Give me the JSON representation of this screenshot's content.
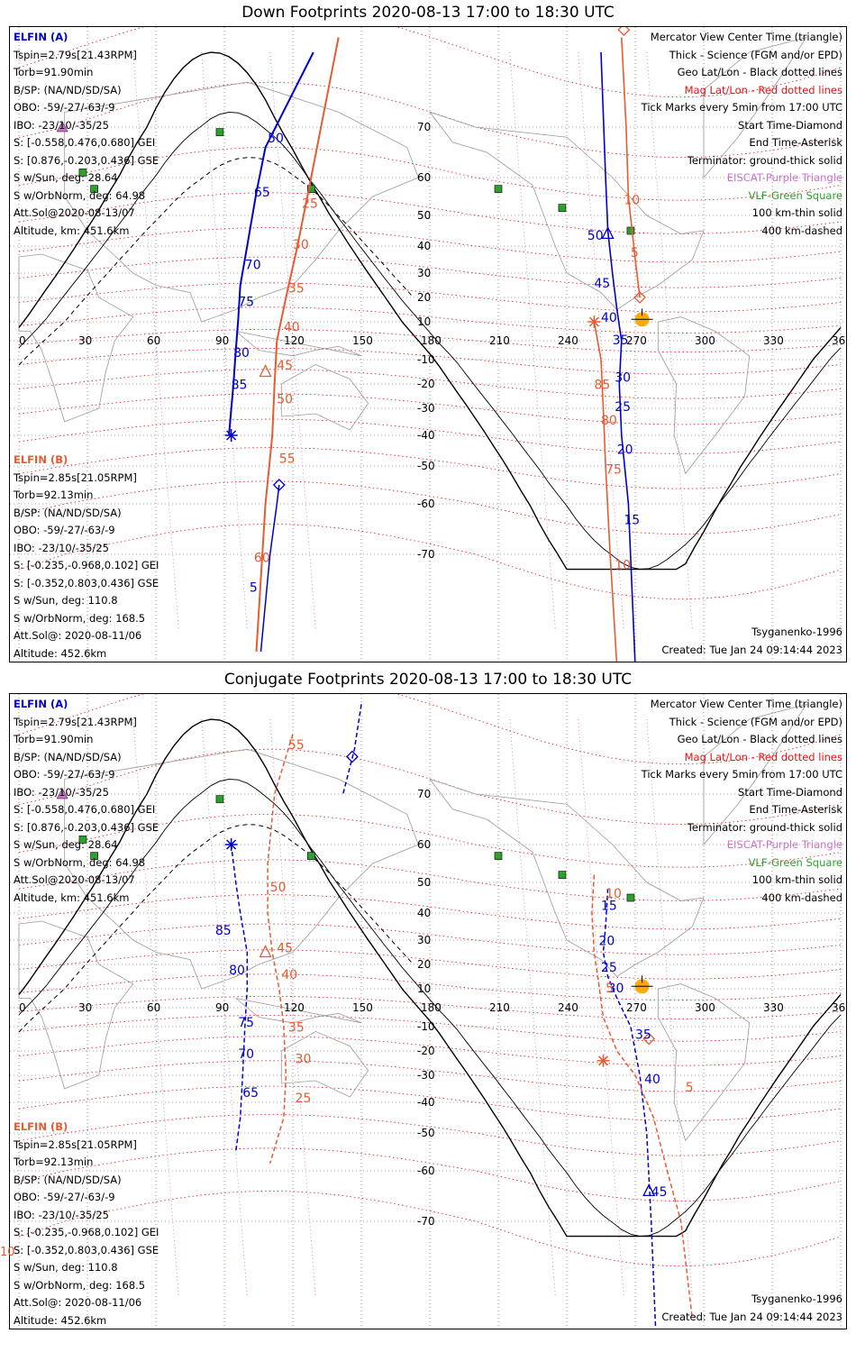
{
  "panels": [
    {
      "title": "Down Footprints 2020-08-13 17:00 to 18:30 UTC",
      "elfin_a": {
        "header": "ELFIN (A)",
        "lines": [
          "Tspin=2.79s[21.43RPM]",
          "Torb=91.90min",
          "B/SP: (NA/ND/SD/SA)",
          "OBO: -59/-27/-63/-9",
          "IBO: -23/10/-35/25",
          "S: [-0.558,0.476,0.680] GEI",
          "S: [0.876,-0.203,0.436] GSE",
          "S w/Sun, deg: 28.64",
          "S w/OrbNorm, deg: 64.98",
          "Att.Sol@2020-08-13/07",
          "Altitude, km: 451.6km"
        ]
      },
      "elfin_b": {
        "header": "ELFIN (B)",
        "lines": [
          "Tspin=2.85s[21.05RPM]",
          "Torb=92.13min",
          "B/SP: (NA/ND/SD/SA)",
          "OBO: -59/-27/-63/-9",
          "IBO: -23/10/-35/25",
          "S: [-0.235,-0.968,0.102] GEI",
          "S: [-0.352,0.803,0.436] GSE",
          "S w/Sun, deg: 110.8",
          "S w/OrbNorm, deg: 168.5",
          "Att.Sol@: 2020-08-11/06",
          "Altitude: 452.6km"
        ]
      },
      "track_labels": {
        "a": [
          {
            "t": "50",
            "lon": 109,
            "lat": 67
          },
          {
            "t": "65",
            "lon": 103,
            "lat": 55
          },
          {
            "t": "70",
            "lon": 99,
            "lat": 31.5
          },
          {
            "t": "75",
            "lon": 96,
            "lat": 16.5
          },
          {
            "t": "80",
            "lon": 94,
            "lat": -8.5
          },
          {
            "t": "85",
            "lon": 93,
            "lat": -22
          },
          {
            "t": "5",
            "lon": 101,
            "lat": -75
          },
          {
            "t": "50",
            "lon": 249,
            "lat": 42
          },
          {
            "t": "45",
            "lon": 252,
            "lat": 24
          },
          {
            "t": "40",
            "lon": 255,
            "lat": 10
          },
          {
            "t": "35",
            "lon": 260,
            "lat": -2
          },
          {
            "t": "30",
            "lon": 261,
            "lat": -19
          },
          {
            "t": "25",
            "lon": 261,
            "lat": -31
          },
          {
            "t": "20",
            "lon": 262,
            "lat": -46
          },
          {
            "t": "15",
            "lon": 265,
            "lat": -64
          }
        ],
        "b": [
          {
            "t": "25",
            "lon": 124,
            "lat": 52
          },
          {
            "t": "30",
            "lon": 120,
            "lat": 39
          },
          {
            "t": "35",
            "lon": 118,
            "lat": 22
          },
          {
            "t": "40",
            "lon": 116,
            "lat": 5
          },
          {
            "t": "45",
            "lon": 113,
            "lat": -14
          },
          {
            "t": "50",
            "lon": 113,
            "lat": -28
          },
          {
            "t": "55",
            "lon": 114,
            "lat": -49
          },
          {
            "t": "60",
            "lon": 103,
            "lat": -71
          },
          {
            "t": "10",
            "lon": 265,
            "lat": 53
          },
          {
            "t": "5",
            "lon": 268,
            "lat": 36
          },
          {
            "t": "85",
            "lon": 252,
            "lat": -22
          },
          {
            "t": "80",
            "lon": 255,
            "lat": -36
          },
          {
            "t": "75",
            "lon": 257,
            "lat": -52
          },
          {
            "t": "10",
            "lon": 261,
            "lat": -72
          }
        ]
      }
    },
    {
      "title": "Conjugate Footprints 2020-08-13 17:00 to 18:30 UTC",
      "elfin_a": {
        "header": "ELFIN (A)",
        "lines": [
          "Tspin=2.79s[21.43RPM]",
          "Torb=91.90min",
          "B/SP: (NA/ND/SD/SA)",
          "OBO: -59/-27/-63/-9",
          "IBO: -23/10/-35/25",
          "S: [-0.558,0.476,0.680] GEI",
          "S: [0.876,-0.203,0.436] GSE",
          "S w/Sun, deg: 28.64",
          "S w/OrbNorm, deg: 64.98",
          "Att.Sol@2020-08-13/07",
          "Altitude, km: 451.6km"
        ]
      },
      "elfin_b": {
        "header": "ELFIN (B)",
        "lines": [
          "Tspin=2.85s[21.05RPM]",
          "Torb=92.13min",
          "B/SP: (NA/ND/SD/SA)",
          "OBO: -59/-27/-63/-9",
          "IBO: -23/10/-35/25",
          "S: [-0.235,-0.968,0.102] GEI",
          "S: [-0.352,0.803,0.436] GSE",
          "S w/Sun, deg: 110.8",
          "S w/OrbNorm, deg: 168.5",
          "Att.Sol@: 2020-08-11/06",
          "Altitude: 452.6km"
        ]
      },
      "track_labels": {
        "a": [
          {
            "t": "85",
            "lon": 86,
            "lat": 32
          },
          {
            "t": "80",
            "lon": 92,
            "lat": 16
          },
          {
            "t": "75",
            "lon": 96,
            "lat": -10
          },
          {
            "t": "70",
            "lon": 96,
            "lat": -23
          },
          {
            "t": "65",
            "lon": 98,
            "lat": -38
          },
          {
            "t": "15",
            "lon": 255,
            "lat": 41
          },
          {
            "t": "20",
            "lon": 254,
            "lat": 28
          },
          {
            "t": "25",
            "lon": 255,
            "lat": 17
          },
          {
            "t": "30",
            "lon": 258,
            "lat": 8
          },
          {
            "t": "35",
            "lon": 270,
            "lat": -15
          },
          {
            "t": "40",
            "lon": 274,
            "lat": -33
          },
          {
            "t": "45",
            "lon": 277,
            "lat": -65
          }
        ],
        "b": [
          {
            "t": "55",
            "lon": 118,
            "lat": 76
          },
          {
            "t": "50",
            "lon": 110,
            "lat": 47
          },
          {
            "t": "45",
            "lon": 113,
            "lat": 25
          },
          {
            "t": "40",
            "lon": 115,
            "lat": 14
          },
          {
            "t": "35",
            "lon": 118,
            "lat": -12
          },
          {
            "t": "30",
            "lon": 121,
            "lat": -25
          },
          {
            "t": "25",
            "lon": 121,
            "lat": -40
          },
          {
            "t": "10",
            "lon": 257,
            "lat": 45
          },
          {
            "t": "5",
            "lon": 257,
            "lat": 8
          },
          {
            "t": "5",
            "lon": 292,
            "lat": -36
          }
        ]
      }
    }
  ],
  "legend": {
    "lines": [
      {
        "text": "Mercator View Center Time (triangle)",
        "color": "black"
      },
      {
        "text": "Thick - Science (FGM and/or EPD)",
        "color": "black"
      },
      {
        "text": "Geo Lat/Lon - Black dotted lines",
        "color": "black"
      },
      {
        "text": "Mag Lat/Lon - Red dotted lines",
        "color": "red"
      },
      {
        "text": "Tick Marks every 5min from 17:00 UTC",
        "color": "black"
      },
      {
        "text": "Start Time-Diamond",
        "color": "black"
      },
      {
        "text": "End Time-Asterisk",
        "color": "black"
      },
      {
        "text": "Terminator: ground-thick solid",
        "color": "black"
      },
      {
        "text": "EISCAT-Purple Triangle",
        "color": "purple"
      },
      {
        "text": "VLF-Green Square",
        "color": "green"
      },
      {
        "text": "100 km-thin solid",
        "color": "black"
      },
      {
        "text": "400 km-dashed",
        "color": "black"
      }
    ]
  },
  "model_credit": "Tsyganenko-1996",
  "created": "Created: Tue Jan 24 09:14:44 2023",
  "lon_ticks": [
    "0",
    "30",
    "60",
    "90",
    "120",
    "150",
    "180",
    "210",
    "240",
    "270",
    "300",
    "330",
    "360"
  ],
  "lat_ticks": [
    "70",
    "60",
    "50",
    "40",
    "30",
    "20",
    "10",
    "-10",
    "-20",
    "-30",
    "-40",
    "-50",
    "-60",
    "-70"
  ],
  "stray_label": "10",
  "colors": {
    "elfin_a": "#0000cc",
    "elfin_b": "#e85a30",
    "mag_grid": "#e81010",
    "eiscat": "#d070d0",
    "vlf": "#2ea02e",
    "sun": "#ffaa00"
  }
}
